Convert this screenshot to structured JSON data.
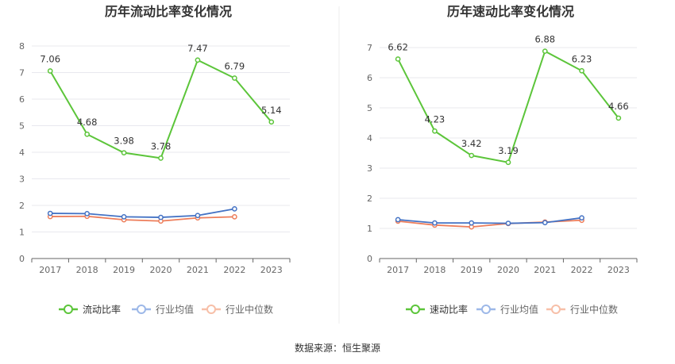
{
  "chart_data": [
    {
      "type": "line",
      "title": "历年流动比率变化情况",
      "categories": [
        "2017",
        "2018",
        "2019",
        "2020",
        "2021",
        "2022",
        "2023"
      ],
      "ylim": [
        0,
        8
      ],
      "yticks": [
        0,
        1,
        2,
        3,
        4,
        5,
        6,
        7,
        8
      ],
      "grid": true,
      "legend_position": "bottom",
      "series": [
        {
          "name": "流动比率",
          "color": "#5cc53a",
          "values": [
            7.06,
            4.68,
            3.98,
            3.78,
            7.47,
            6.79,
            5.14
          ],
          "labels": [
            "7.06",
            "4.68",
            "3.98",
            "3.78",
            "7.47",
            "6.79",
            "5.14"
          ]
        },
        {
          "name": "行业均值",
          "color": "#4472c4",
          "values": [
            1.7,
            1.69,
            1.57,
            1.55,
            1.62,
            1.87,
            null
          ]
        },
        {
          "name": "行业中位数",
          "color": "#ed7d5a",
          "values": [
            1.58,
            1.59,
            1.46,
            1.41,
            1.53,
            1.57,
            null
          ]
        }
      ]
    },
    {
      "type": "line",
      "title": "历年速动比率变化情况",
      "categories": [
        "2017",
        "2018",
        "2019",
        "2020",
        "2021",
        "2022",
        "2023"
      ],
      "ylim": [
        0,
        7
      ],
      "yticks": [
        0,
        1,
        2,
        3,
        4,
        5,
        6,
        7
      ],
      "grid": true,
      "legend_position": "bottom",
      "series": [
        {
          "name": "速动比率",
          "color": "#5cc53a",
          "values": [
            6.62,
            4.23,
            3.42,
            3.19,
            6.88,
            6.23,
            4.66
          ],
          "labels": [
            "6.62",
            "4.23",
            "3.42",
            "3.19",
            "6.88",
            "6.23",
            "4.66"
          ]
        },
        {
          "name": "行业均值",
          "color": "#4472c4",
          "values": [
            1.29,
            1.18,
            1.18,
            1.17,
            1.19,
            1.35,
            null
          ]
        },
        {
          "name": "行业中位数",
          "color": "#ed7d5a",
          "values": [
            1.24,
            1.11,
            1.05,
            1.16,
            1.21,
            1.27,
            null
          ]
        }
      ]
    }
  ],
  "legend_colors": {
    "main": "#5cc53a",
    "avg": "#9db8e8",
    "median": "#f7bfa8"
  },
  "source": "数据来源：恒生聚源"
}
